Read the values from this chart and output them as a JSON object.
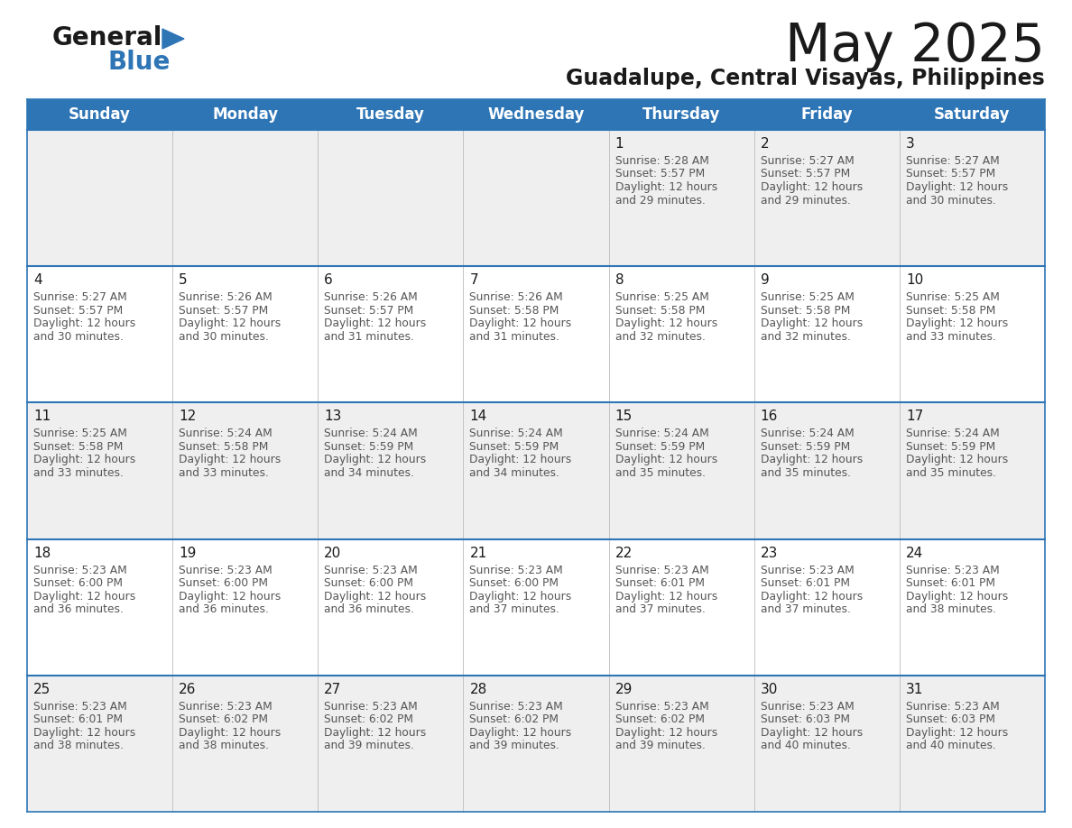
{
  "title": "May 2025",
  "subtitle": "Guadalupe, Central Visayas, Philippines",
  "header_bg": "#2E75B6",
  "header_text_color": "#FFFFFF",
  "days_of_week": [
    "Sunday",
    "Monday",
    "Tuesday",
    "Wednesday",
    "Thursday",
    "Friday",
    "Saturday"
  ],
  "cell_bg_odd_row": "#EFEFEF",
  "cell_bg_even_row": "#FFFFFF",
  "row_line_color": "#2E75B6",
  "text_color": "#555555",
  "calendar": [
    [
      null,
      null,
      null,
      null,
      {
        "day": 1,
        "sunrise": "5:28 AM",
        "sunset": "5:57 PM",
        "daylight": "12 hours",
        "daylight2": "and 29 minutes."
      },
      {
        "day": 2,
        "sunrise": "5:27 AM",
        "sunset": "5:57 PM",
        "daylight": "12 hours",
        "daylight2": "and 29 minutes."
      },
      {
        "day": 3,
        "sunrise": "5:27 AM",
        "sunset": "5:57 PM",
        "daylight": "12 hours",
        "daylight2": "and 30 minutes."
      }
    ],
    [
      {
        "day": 4,
        "sunrise": "5:27 AM",
        "sunset": "5:57 PM",
        "daylight": "12 hours",
        "daylight2": "and 30 minutes."
      },
      {
        "day": 5,
        "sunrise": "5:26 AM",
        "sunset": "5:57 PM",
        "daylight": "12 hours",
        "daylight2": "and 30 minutes."
      },
      {
        "day": 6,
        "sunrise": "5:26 AM",
        "sunset": "5:57 PM",
        "daylight": "12 hours",
        "daylight2": "and 31 minutes."
      },
      {
        "day": 7,
        "sunrise": "5:26 AM",
        "sunset": "5:58 PM",
        "daylight": "12 hours",
        "daylight2": "and 31 minutes."
      },
      {
        "day": 8,
        "sunrise": "5:25 AM",
        "sunset": "5:58 PM",
        "daylight": "12 hours",
        "daylight2": "and 32 minutes."
      },
      {
        "day": 9,
        "sunrise": "5:25 AM",
        "sunset": "5:58 PM",
        "daylight": "12 hours",
        "daylight2": "and 32 minutes."
      },
      {
        "day": 10,
        "sunrise": "5:25 AM",
        "sunset": "5:58 PM",
        "daylight": "12 hours",
        "daylight2": "and 33 minutes."
      }
    ],
    [
      {
        "day": 11,
        "sunrise": "5:25 AM",
        "sunset": "5:58 PM",
        "daylight": "12 hours",
        "daylight2": "and 33 minutes."
      },
      {
        "day": 12,
        "sunrise": "5:24 AM",
        "sunset": "5:58 PM",
        "daylight": "12 hours",
        "daylight2": "and 33 minutes."
      },
      {
        "day": 13,
        "sunrise": "5:24 AM",
        "sunset": "5:59 PM",
        "daylight": "12 hours",
        "daylight2": "and 34 minutes."
      },
      {
        "day": 14,
        "sunrise": "5:24 AM",
        "sunset": "5:59 PM",
        "daylight": "12 hours",
        "daylight2": "and 34 minutes."
      },
      {
        "day": 15,
        "sunrise": "5:24 AM",
        "sunset": "5:59 PM",
        "daylight": "12 hours",
        "daylight2": "and 35 minutes."
      },
      {
        "day": 16,
        "sunrise": "5:24 AM",
        "sunset": "5:59 PM",
        "daylight": "12 hours",
        "daylight2": "and 35 minutes."
      },
      {
        "day": 17,
        "sunrise": "5:24 AM",
        "sunset": "5:59 PM",
        "daylight": "12 hours",
        "daylight2": "and 35 minutes."
      }
    ],
    [
      {
        "day": 18,
        "sunrise": "5:23 AM",
        "sunset": "6:00 PM",
        "daylight": "12 hours",
        "daylight2": "and 36 minutes."
      },
      {
        "day": 19,
        "sunrise": "5:23 AM",
        "sunset": "6:00 PM",
        "daylight": "12 hours",
        "daylight2": "and 36 minutes."
      },
      {
        "day": 20,
        "sunrise": "5:23 AM",
        "sunset": "6:00 PM",
        "daylight": "12 hours",
        "daylight2": "and 36 minutes."
      },
      {
        "day": 21,
        "sunrise": "5:23 AM",
        "sunset": "6:00 PM",
        "daylight": "12 hours",
        "daylight2": "and 37 minutes."
      },
      {
        "day": 22,
        "sunrise": "5:23 AM",
        "sunset": "6:01 PM",
        "daylight": "12 hours",
        "daylight2": "and 37 minutes."
      },
      {
        "day": 23,
        "sunrise": "5:23 AM",
        "sunset": "6:01 PM",
        "daylight": "12 hours",
        "daylight2": "and 37 minutes."
      },
      {
        "day": 24,
        "sunrise": "5:23 AM",
        "sunset": "6:01 PM",
        "daylight": "12 hours",
        "daylight2": "and 38 minutes."
      }
    ],
    [
      {
        "day": 25,
        "sunrise": "5:23 AM",
        "sunset": "6:01 PM",
        "daylight": "12 hours",
        "daylight2": "and 38 minutes."
      },
      {
        "day": 26,
        "sunrise": "5:23 AM",
        "sunset": "6:02 PM",
        "daylight": "12 hours",
        "daylight2": "and 38 minutes."
      },
      {
        "day": 27,
        "sunrise": "5:23 AM",
        "sunset": "6:02 PM",
        "daylight": "12 hours",
        "daylight2": "and 39 minutes."
      },
      {
        "day": 28,
        "sunrise": "5:23 AM",
        "sunset": "6:02 PM",
        "daylight": "12 hours",
        "daylight2": "and 39 minutes."
      },
      {
        "day": 29,
        "sunrise": "5:23 AM",
        "sunset": "6:02 PM",
        "daylight": "12 hours",
        "daylight2": "and 39 minutes."
      },
      {
        "day": 30,
        "sunrise": "5:23 AM",
        "sunset": "6:03 PM",
        "daylight": "12 hours",
        "daylight2": "and 40 minutes."
      },
      {
        "day": 31,
        "sunrise": "5:23 AM",
        "sunset": "6:03 PM",
        "daylight": "12 hours",
        "daylight2": "and 40 minutes."
      }
    ]
  ]
}
